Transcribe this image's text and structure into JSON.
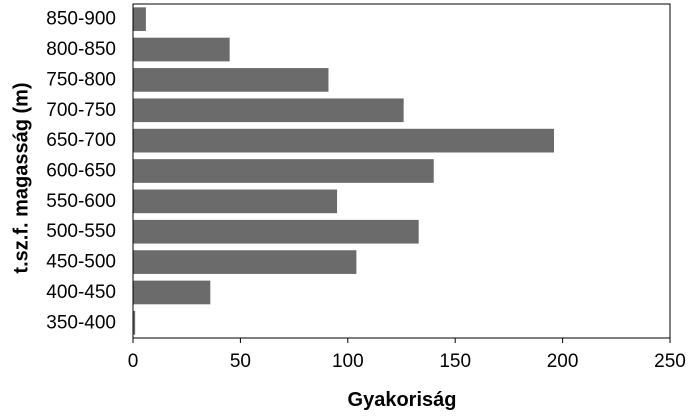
{
  "chart_data": {
    "type": "bar",
    "orientation": "horizontal",
    "categories": [
      "850-900",
      "800-850",
      "750-800",
      "700-750",
      "650-700",
      "600-650",
      "550-600",
      "500-550",
      "450-500",
      "400-450",
      "350-400"
    ],
    "values": [
      6,
      45,
      91,
      126,
      196,
      140,
      95,
      133,
      104,
      36,
      1
    ],
    "xlabel": "Gyakoriság",
    "ylabel": "t.sz.f.  magasság (m)",
    "xlim": [
      0,
      250
    ],
    "xticks": [
      0,
      50,
      100,
      150,
      200,
      250
    ],
    "grid": false,
    "legend": "none",
    "colors": {
      "bar": "#6b6b6b",
      "axis": "#000000",
      "background": "#ffffff"
    }
  }
}
